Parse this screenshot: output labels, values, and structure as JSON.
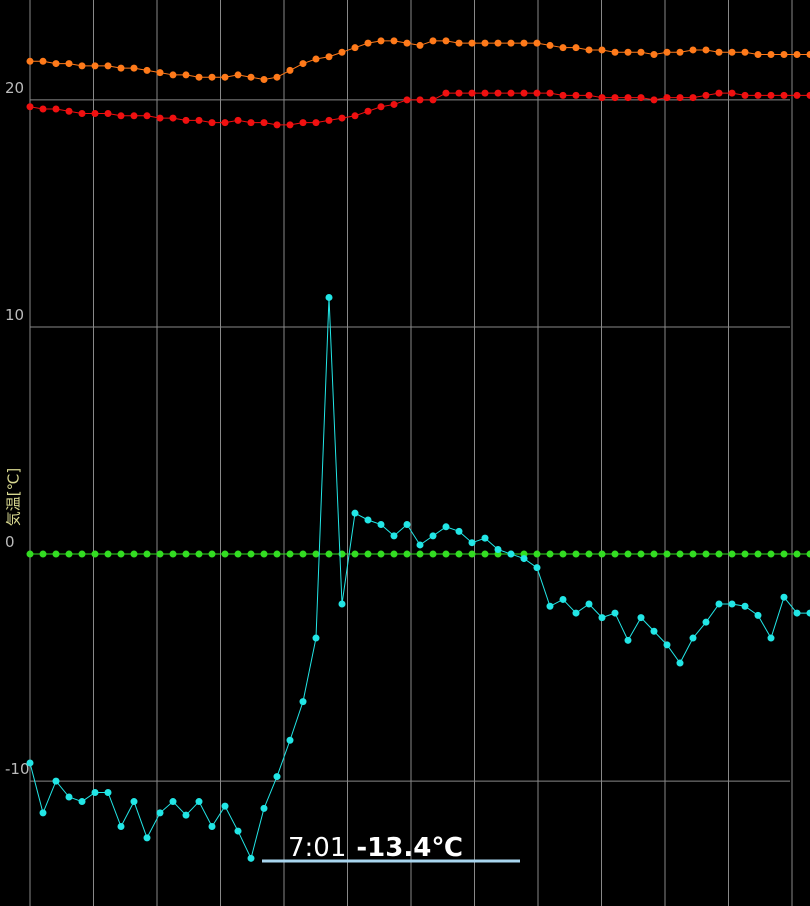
{
  "chart_data": {
    "type": "line",
    "y_label": "気温[℃]",
    "categories": [
      null,
      null,
      null,
      null,
      null,
      null,
      null,
      null,
      null,
      null,
      null,
      null,
      null,
      null,
      null,
      null,
      null,
      null,
      null,
      null,
      null,
      null,
      null,
      null,
      null,
      null,
      null,
      null,
      null,
      null,
      null,
      null,
      null,
      null,
      null,
      null,
      null,
      null,
      null,
      null,
      null,
      null,
      null,
      null,
      null,
      null,
      null,
      null,
      null,
      null,
      null,
      null,
      null,
      null,
      null,
      null,
      null,
      null,
      null,
      null,
      null
    ],
    "ylim": [
      -15.5,
      24.4
    ],
    "yticks": [
      -10,
      0,
      10,
      20
    ],
    "grid": true,
    "series": [
      {
        "color": "#ff7a1a",
        "values": [
          21.7,
          21.7,
          21.6,
          21.6,
          21.5,
          21.5,
          21.5,
          21.4,
          21.4,
          21.3,
          21.2,
          21.1,
          21.1,
          21.0,
          21.0,
          21.0,
          21.1,
          21.0,
          20.9,
          21.0,
          21.3,
          21.6,
          21.8,
          21.9,
          22.1,
          22.3,
          22.5,
          22.6,
          22.6,
          22.5,
          22.4,
          22.6,
          22.6,
          22.5,
          22.5,
          22.5,
          22.5,
          22.5,
          22.5,
          22.5,
          22.4,
          22.3,
          22.3,
          22.2,
          22.2,
          22.1,
          22.1,
          22.1,
          22.0,
          22.1,
          22.1,
          22.2,
          22.2,
          22.1,
          22.1,
          22.1,
          22.0,
          22.0,
          22.0,
          22.0,
          22.0
        ]
      },
      {
        "color": "#f01010",
        "values": [
          19.7,
          19.6,
          19.6,
          19.5,
          19.4,
          19.4,
          19.4,
          19.3,
          19.3,
          19.3,
          19.2,
          19.2,
          19.1,
          19.1,
          19.0,
          19.0,
          19.1,
          19.0,
          19.0,
          18.9,
          18.9,
          19.0,
          19.0,
          19.1,
          19.2,
          19.3,
          19.5,
          19.7,
          19.8,
          20.0,
          20.0,
          20.0,
          20.3,
          20.3,
          20.3,
          20.3,
          20.3,
          20.3,
          20.3,
          20.3,
          20.3,
          20.2,
          20.2,
          20.2,
          20.1,
          20.1,
          20.1,
          20.1,
          20.0,
          20.1,
          20.1,
          20.1,
          20.2,
          20.3,
          20.3,
          20.2,
          20.2,
          20.2,
          20.2,
          20.2,
          20.2
        ]
      },
      {
        "color": "#33dd22",
        "values": [
          0,
          0,
          0,
          0,
          0,
          0,
          0,
          0,
          0,
          0,
          0,
          0,
          0,
          0,
          0,
          0,
          0,
          0,
          0,
          0,
          0,
          0,
          0,
          0,
          0,
          0,
          0,
          0,
          0,
          0,
          0,
          0,
          0,
          0,
          0,
          0,
          0,
          0,
          0,
          0,
          0,
          0,
          0,
          0,
          0,
          0,
          0,
          0,
          0,
          0,
          0,
          0,
          0,
          0,
          0,
          0,
          0,
          0,
          0,
          0,
          0
        ]
      },
      {
        "color": "#22e6e6",
        "values": [
          -9.2,
          -11.4,
          -10.0,
          -10.7,
          -10.9,
          -10.5,
          -10.5,
          -12.0,
          -10.9,
          -12.5,
          -11.4,
          -10.9,
          -11.5,
          -10.9,
          -12.0,
          -11.1,
          -12.2,
          -13.4,
          -11.2,
          -9.8,
          -8.2,
          -6.5,
          -3.7,
          11.3,
          -2.2,
          1.8,
          1.5,
          1.3,
          0.8,
          1.3,
          0.4,
          0.8,
          1.2,
          1.0,
          0.5,
          0.7,
          0.2,
          0.0,
          -0.2,
          -0.6,
          -2.3,
          -2.0,
          -2.6,
          -2.2,
          -2.8,
          -2.6,
          -3.8,
          -2.8,
          -3.4,
          -4.0,
          -4.8,
          -3.7,
          -3.0,
          -2.2,
          -2.2,
          -2.3,
          -2.7,
          -3.7,
          -1.9,
          -2.6,
          -2.6
        ]
      }
    ],
    "annotation": {
      "time": "7:01",
      "value": "-13.4℃"
    }
  }
}
